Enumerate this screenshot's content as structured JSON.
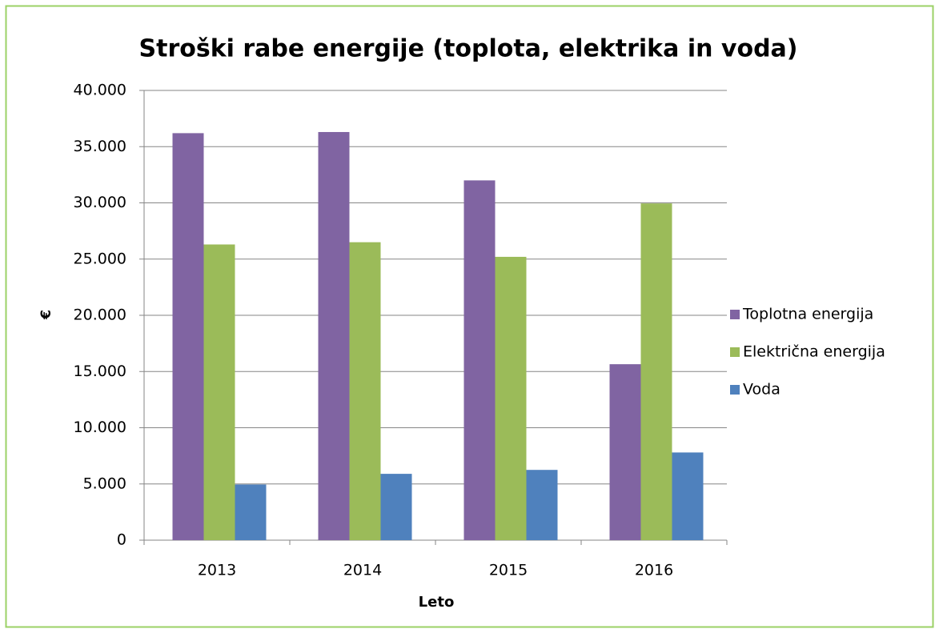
{
  "chart_data": {
    "type": "bar",
    "title": "Stroški rabe energije (toplota, elektrika in  voda)",
    "x_label": "Leto",
    "y_label": "€",
    "categories": [
      "2013",
      "2014",
      "2015",
      "2016"
    ],
    "series": [
      {
        "name": "Toplotna energija",
        "color": "#8064a2",
        "values": [
          36200,
          36300,
          32000,
          15650
        ]
      },
      {
        "name": "Električna energija",
        "color": "#9bbb59",
        "values": [
          26300,
          26500,
          25200,
          29950
        ]
      },
      {
        "name": "Voda",
        "color": "#4f81bd",
        "values": [
          4950,
          5900,
          6250,
          7800
        ]
      }
    ],
    "ylim": [
      0,
      40000
    ],
    "yticks": [
      0,
      {
        "value": 5000,
        "label": "5.000"
      },
      {
        "value": 10000,
        "label": "10.000"
      },
      {
        "value": 15000,
        "label": "15.000"
      },
      {
        "value": 20000,
        "label": "20.000"
      },
      {
        "value": 25000,
        "label": "25.000"
      },
      {
        "value": 30000,
        "label": "30.000"
      },
      {
        "value": 35000,
        "label": "35.000"
      },
      {
        "value": 40000,
        "label": "40.000"
      }
    ],
    "grid": true,
    "legend": "right"
  }
}
